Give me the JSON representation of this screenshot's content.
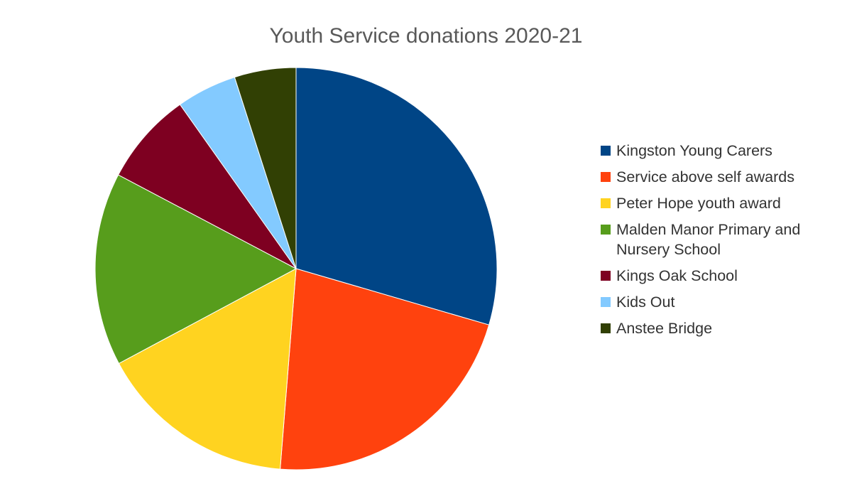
{
  "chart_data": {
    "type": "pie",
    "title": "Youth Service donations 2020-21",
    "legend_position": "right",
    "slices": [
      {
        "label": "Kingston Young Carers",
        "value": 30.4,
        "color": "#004586"
      },
      {
        "label": "Service above self awards",
        "value": 22.4,
        "color": "#ff420e"
      },
      {
        "label": "Peter Hope youth award",
        "value": 16.4,
        "color": "#ffd320"
      },
      {
        "label": "Malden Manor Primary and Nursery School",
        "value": 16.0,
        "color": "#579d1c"
      },
      {
        "label": "Kings Oak School",
        "value": 7.7,
        "color": "#7e0021"
      },
      {
        "label": "Kids Out",
        "value": 5.0,
        "color": "#83caff"
      },
      {
        "label": "Anstee Bridge",
        "value": 5.1,
        "color": "#314004"
      }
    ]
  }
}
